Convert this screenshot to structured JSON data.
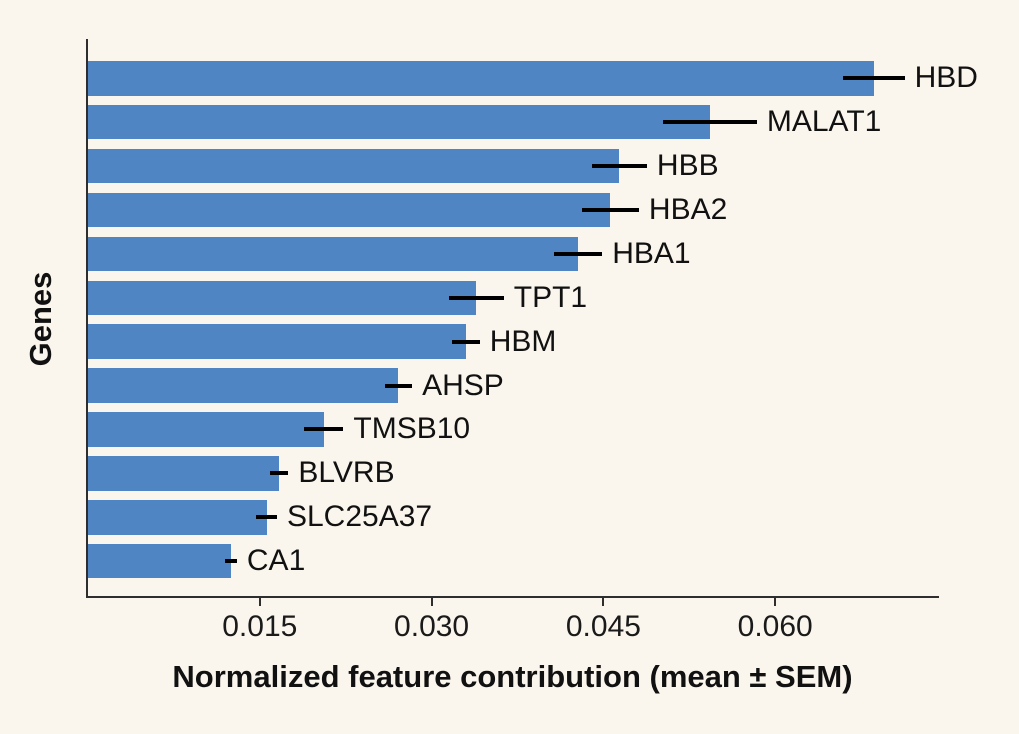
{
  "figure": {
    "background_color": "#FBF6ED",
    "bar_color": "#5085C3",
    "error_bar_color": "#000000",
    "spine_color": "#2E2E2E",
    "text_color": "#111111"
  },
  "chart_data": {
    "type": "bar",
    "orientation": "horizontal",
    "title": "",
    "xlabel": "Normalized feature contribution (mean ± SEM)",
    "ylabel": "Genes",
    "xlim": [
      0,
      0.0743
    ],
    "x_ticks": [
      0.015,
      0.03,
      0.045,
      0.06
    ],
    "x_tick_labels": [
      "0.015",
      "0.030",
      "0.045",
      "0.060"
    ],
    "grid": false,
    "legend": false,
    "bar_label_position": "right of error bar",
    "categories": [
      "HBD",
      "MALAT1",
      "HBB",
      "HBA2",
      "HBA1",
      "TPT1",
      "HBM",
      "AHSP",
      "TMSB10",
      "BLVRB",
      "SLC25A37",
      "CA1"
    ],
    "series": [
      {
        "name": "Normalized feature contribution (mean)",
        "values": [
          0.0686,
          0.0543,
          0.0464,
          0.0456,
          0.0428,
          0.0339,
          0.033,
          0.0271,
          0.0206,
          0.0167,
          0.0156,
          0.0125
        ],
        "sem": [
          0.0027,
          0.0041,
          0.0024,
          0.0025,
          0.0021,
          0.0024,
          0.0012,
          0.0012,
          0.0017,
          0.0008,
          0.0009,
          0.0005
        ]
      }
    ]
  }
}
